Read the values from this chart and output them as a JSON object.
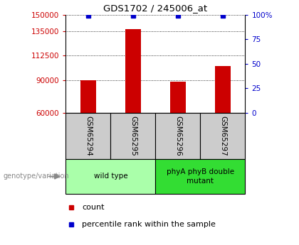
{
  "title": "GDS1702 / 245006_at",
  "samples": [
    "GSM65294",
    "GSM65295",
    "GSM65296",
    "GSM65297"
  ],
  "counts": [
    90000,
    137000,
    88500,
    103000
  ],
  "percentiles": [
    99,
    99,
    99,
    99
  ],
  "ylim_left": [
    60000,
    150000
  ],
  "ylim_right": [
    0,
    100
  ],
  "yticks_left": [
    60000,
    90000,
    112500,
    135000,
    150000
  ],
  "yticks_right": [
    0,
    25,
    50,
    75,
    100
  ],
  "bar_color": "#cc0000",
  "dot_color": "#0000cc",
  "bar_width": 0.35,
  "groups": [
    {
      "label": "wild type",
      "samples_idx": [
        0,
        1
      ],
      "color": "#aaffaa"
    },
    {
      "label": "phyA phyB double\nmutant",
      "samples_idx": [
        2,
        3
      ],
      "color": "#33dd33"
    }
  ],
  "legend_count_color": "#cc0000",
  "legend_dot_color": "#0000cc",
  "xlabel_area_color": "#cccccc",
  "genotype_label": "genotype/variation",
  "background_color": "#ffffff"
}
